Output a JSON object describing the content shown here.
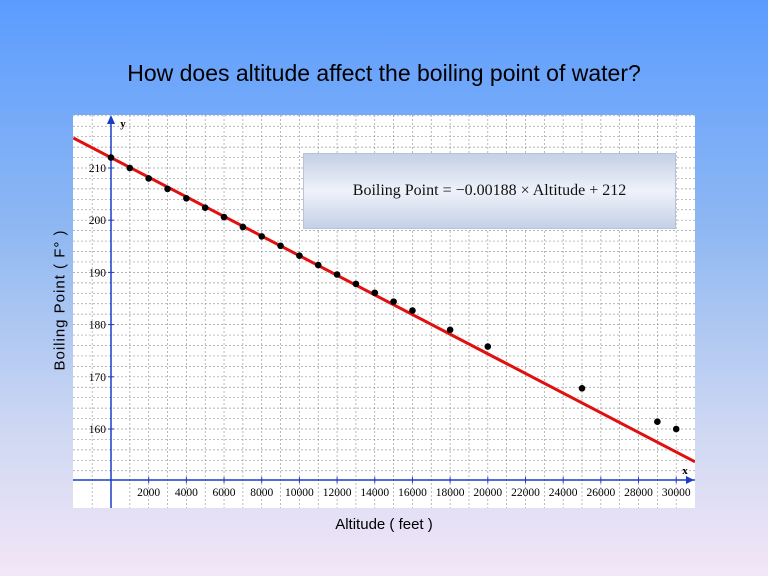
{
  "title": "How does altitude affect the boiling point of water?",
  "ylabel": "Boiling Point   ( F° )",
  "xlabel": "Altitude   ( feet )",
  "equation": "Boiling Point  =  −0.00188 × Altitude + 212",
  "colors": {
    "fit_line": "#e01010",
    "points": "#000000",
    "axis": "#1a3cc8",
    "grid": "#9a9a9a"
  },
  "chart_data": {
    "type": "scatter",
    "title": "How does altitude affect the boiling point of water?",
    "xlabel": "Altitude ( feet )",
    "ylabel": "Boiling Point ( F° )",
    "x_axis_letter": "x",
    "y_axis_letter": "y",
    "xlim": [
      -2000,
      31000
    ],
    "ylim": [
      151,
      223
    ],
    "x_ticks": [
      2000,
      4000,
      6000,
      8000,
      10000,
      12000,
      14000,
      16000,
      18000,
      20000,
      22000,
      24000,
      26000,
      28000,
      30000
    ],
    "y_ticks": [
      160,
      170,
      180,
      190,
      200,
      210
    ],
    "grid": true,
    "series": [
      {
        "x": [
          0,
          1000,
          2000,
          3000,
          4000,
          5000,
          6000,
          7000,
          8000,
          9000,
          10000,
          11000,
          12000,
          13000,
          14000,
          15000,
          16000,
          18000,
          20000,
          25000,
          29000,
          30000
        ],
        "y": [
          212,
          210,
          208,
          206,
          204.2,
          202.4,
          200.6,
          198.7,
          196.9,
          195.1,
          193.2,
          191.4,
          189.6,
          187.8,
          186.1,
          184.4,
          182.7,
          179.0,
          175.8,
          167.8,
          161.4,
          160.0
        ]
      }
    ],
    "trendline": {
      "slope": -0.00188,
      "intercept": 212,
      "x_range": [
        -2000,
        31000
      ]
    }
  }
}
